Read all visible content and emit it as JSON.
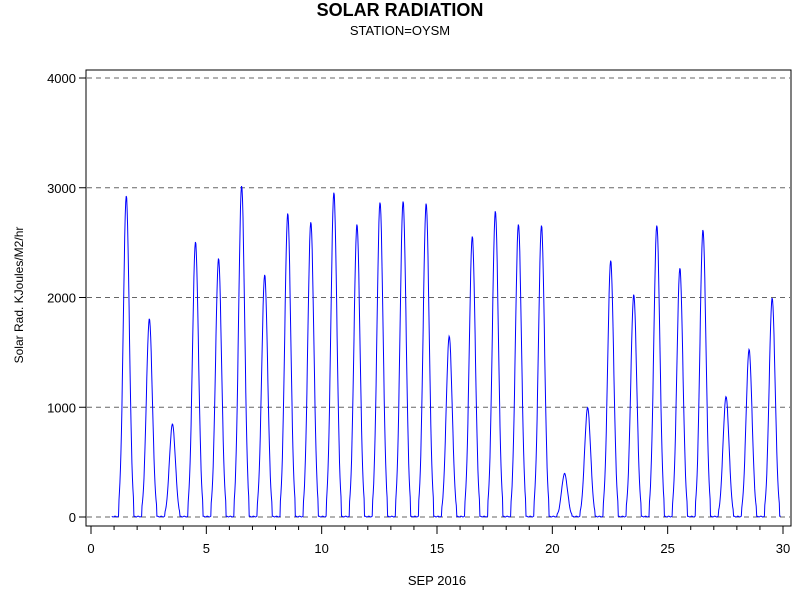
{
  "chart_data": {
    "type": "line",
    "title": "SOLAR RADIATION",
    "subtitle": "STATION=OYSM",
    "xlabel": "SEP 2016",
    "ylabel": "Solar Rad. KJoules/M2/hr",
    "xlim": [
      0,
      30
    ],
    "ylim": [
      0,
      4000
    ],
    "xticks": [
      0,
      5,
      10,
      15,
      20,
      25,
      30
    ],
    "yticks": [
      0,
      1000,
      2000,
      3000,
      4000
    ],
    "grid": "horizontal dashed",
    "series": [
      {
        "color": "#0000ff",
        "daily_peaks": [
          {
            "day": 1,
            "peak": 2920
          },
          {
            "day": 2,
            "peak": 1800
          },
          {
            "day": 3,
            "peak": 840
          },
          {
            "day": 4,
            "peak": 2500
          },
          {
            "day": 5,
            "peak": 2350
          },
          {
            "day": 6,
            "peak": 3010
          },
          {
            "day": 7,
            "peak": 2200
          },
          {
            "day": 8,
            "peak": 2760
          },
          {
            "day": 9,
            "peak": 2680
          },
          {
            "day": 10,
            "peak": 2950
          },
          {
            "day": 11,
            "peak": 2660
          },
          {
            "day": 12,
            "peak": 2860
          },
          {
            "day": 13,
            "peak": 2870
          },
          {
            "day": 14,
            "peak": 2850
          },
          {
            "day": 15,
            "peak": 1640
          },
          {
            "day": 16,
            "peak": 2550
          },
          {
            "day": 17,
            "peak": 2780
          },
          {
            "day": 18,
            "peak": 2660
          },
          {
            "day": 19,
            "peak": 2650
          },
          {
            "day": 20,
            "peak": 390
          },
          {
            "day": 21,
            "peak": 990
          },
          {
            "day": 22,
            "peak": 2330
          },
          {
            "day": 23,
            "peak": 2020
          },
          {
            "day": 24,
            "peak": 2650
          },
          {
            "day": 25,
            "peak": 2260
          },
          {
            "day": 26,
            "peak": 2610
          },
          {
            "day": 27,
            "peak": 1090
          },
          {
            "day": 28,
            "peak": 1520
          },
          {
            "day": 29,
            "peak": 1990
          }
        ]
      }
    ]
  }
}
